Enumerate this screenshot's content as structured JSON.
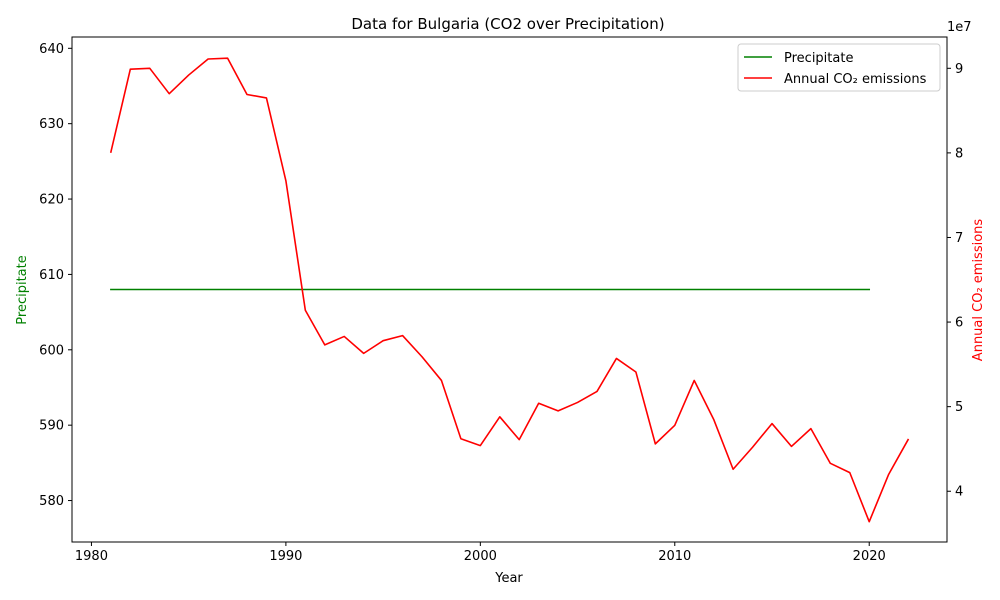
{
  "chart_data": {
    "type": "line",
    "title": "Data for Bulgaria (CO2 over Precipitation)",
    "xlabel": "Year",
    "ylabel_left": "Precipitate",
    "ylabel_right": "Annual CO₂ emissions",
    "right_axis_multiplier": "1e7",
    "xlim": [
      1979,
      2024
    ],
    "ylim_left": [
      574.5,
      641.5
    ],
    "ylim_right": [
      34000000,
      93700000
    ],
    "x_ticks": [
      1980,
      1990,
      2000,
      2010,
      2020
    ],
    "y_ticks_left": [
      580,
      590,
      600,
      610,
      620,
      630,
      640
    ],
    "y_ticks_right": [
      40000000,
      50000000,
      60000000,
      70000000,
      80000000,
      90000000
    ],
    "y_tick_labels_right": [
      "4",
      "5",
      "6",
      "7",
      "8",
      "9"
    ],
    "legend_position": "top-right",
    "grid": false,
    "series": [
      {
        "name": "Precipitate",
        "axis": "left",
        "color": "#008000",
        "x": [
          1981,
          1982,
          1983,
          1984,
          1985,
          1986,
          1987,
          1988,
          1989,
          1990,
          1991,
          1992,
          1993,
          1994,
          1995,
          1996,
          1997,
          1998,
          1999,
          2000,
          2001,
          2002,
          2003,
          2004,
          2005,
          2006,
          2007,
          2008,
          2009,
          2010,
          2011,
          2012,
          2013,
          2014,
          2015,
          2016,
          2017,
          2018,
          2019,
          2020
        ],
        "values": [
          608,
          608,
          608,
          608,
          608,
          608,
          608,
          608,
          608,
          608,
          608,
          608,
          608,
          608,
          608,
          608,
          608,
          608,
          608,
          608,
          608,
          608,
          608,
          608,
          608,
          608,
          608,
          608,
          608,
          608,
          608,
          608,
          608,
          608,
          608,
          608,
          608,
          608,
          608,
          608
        ]
      },
      {
        "name": "Annual CO₂ emissions",
        "axis": "right",
        "color": "#ff0000",
        "x": [
          1981,
          1982,
          1983,
          1984,
          1985,
          1986,
          1987,
          1988,
          1989,
          1990,
          1991,
          1992,
          1993,
          1994,
          1995,
          1996,
          1997,
          1998,
          1999,
          2000,
          2001,
          2002,
          2003,
          2004,
          2005,
          2006,
          2007,
          2008,
          2009,
          2010,
          2011,
          2012,
          2013,
          2014,
          2015,
          2016,
          2017,
          2018,
          2019,
          2020,
          2021,
          2022
        ],
        "values": [
          80100000,
          89900000,
          90000000,
          87000000,
          89200000,
          91100000,
          91200000,
          86900000,
          86500000,
          76700000,
          61400000,
          57300000,
          58300000,
          56300000,
          57800000,
          58400000,
          55900000,
          53100000,
          46200000,
          45400000,
          48800000,
          46100000,
          50400000,
          49500000,
          50500000,
          51800000,
          55700000,
          54100000,
          45600000,
          47800000,
          53100000,
          48500000,
          42600000,
          45200000,
          48000000,
          45300000,
          47400000,
          43300000,
          42200000,
          36400000,
          42000000,
          46100000
        ]
      }
    ]
  }
}
